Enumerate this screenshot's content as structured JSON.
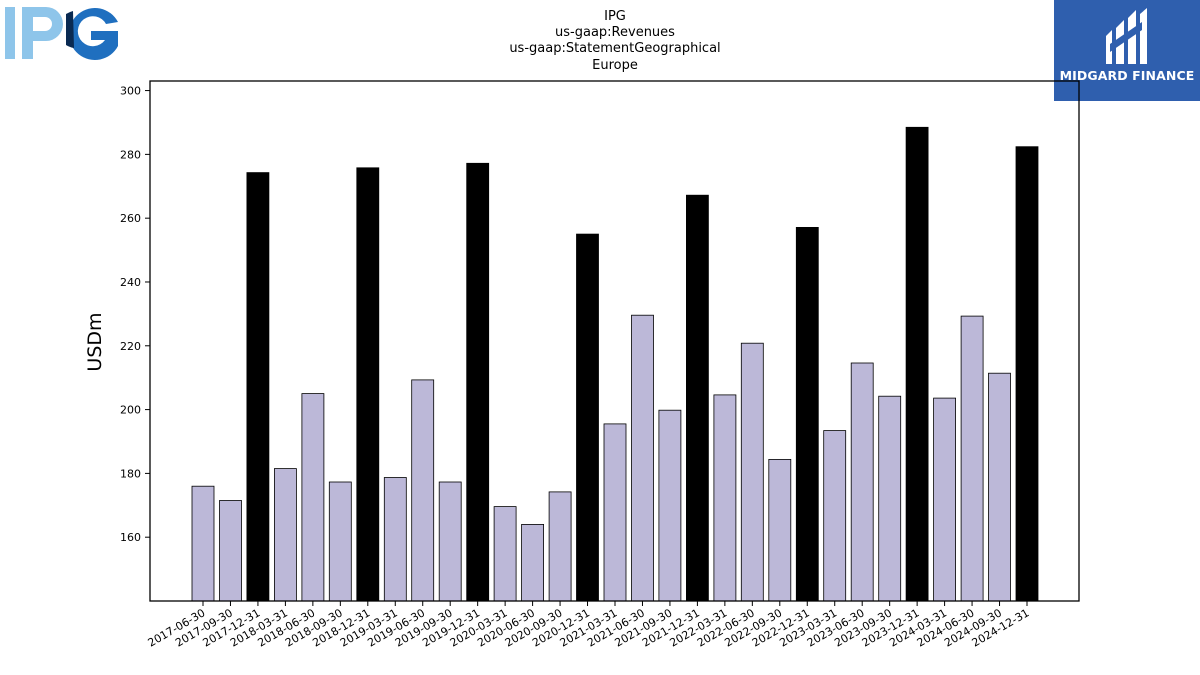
{
  "logos": {
    "left": {
      "text": "IPG",
      "colors": [
        "#8ec5ea",
        "#1f6fbf",
        "#0a2a52"
      ]
    },
    "right": {
      "text": "MIDGARD FINANCE",
      "background": "#2f5fae"
    }
  },
  "chart_data": {
    "type": "bar",
    "title": [
      "IPG",
      "us-gaap:Revenues",
      "us-gaap:StatementGeographical",
      "Europe"
    ],
    "xlabel": "",
    "ylabel": "USDm",
    "ylim": [
      140,
      303
    ],
    "yticks": [
      160,
      180,
      200,
      220,
      240,
      260,
      280,
      300
    ],
    "grid": false,
    "colors": {
      "quarter": "#bcb8d8",
      "year_end": "#000000",
      "edge": "#000000"
    },
    "categories": [
      "2017-06-30",
      "2017-09-30",
      "2017-12-31",
      "2018-03-31",
      "2018-06-30",
      "2018-09-30",
      "2018-12-31",
      "2019-03-31",
      "2019-06-30",
      "2019-09-30",
      "2019-12-31",
      "2020-03-31",
      "2020-06-30",
      "2020-09-30",
      "2020-12-31",
      "2021-03-31",
      "2021-06-30",
      "2021-09-30",
      "2021-12-31",
      "2022-03-31",
      "2022-06-30",
      "2022-09-30",
      "2022-12-31",
      "2023-03-31",
      "2023-06-30",
      "2023-09-30",
      "2023-12-31",
      "2024-03-31",
      "2024-06-30",
      "2024-09-30",
      "2024-12-31"
    ],
    "values": [
      176,
      171.5,
      274.3,
      181.5,
      205,
      177.3,
      275.8,
      178.7,
      209.3,
      177.3,
      277.2,
      169.6,
      164,
      174.2,
      255,
      195.5,
      229.6,
      199.8,
      267.2,
      204.6,
      220.8,
      184.4,
      257.1,
      193.4,
      214.6,
      204.2,
      288.5,
      203.6,
      229.3,
      211.4,
      282.4
    ]
  }
}
